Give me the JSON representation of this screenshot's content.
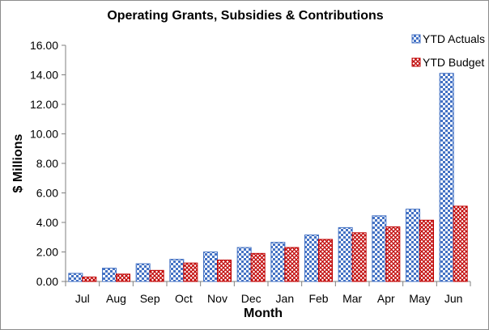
{
  "chart_data": {
    "type": "bar",
    "title": "Operating Grants, Subsidies & Contributions",
    "xlabel": "Month",
    "ylabel": "$ Millions",
    "categories": [
      "Jul",
      "Aug",
      "Sep",
      "Oct",
      "Nov",
      "Dec",
      "Jan",
      "Feb",
      "Mar",
      "Apr",
      "May",
      "Jun"
    ],
    "series": [
      {
        "name": "YTD Actuals",
        "color": "#4472c4",
        "pattern": "checker",
        "values": [
          0.55,
          0.9,
          1.2,
          1.5,
          2.0,
          2.3,
          2.65,
          3.15,
          3.65,
          4.45,
          4.9,
          14.1
        ]
      },
      {
        "name": "YTD Budget",
        "color": "#c00000",
        "pattern": "diamond-hatch",
        "values": [
          0.3,
          0.5,
          0.75,
          1.25,
          1.45,
          1.9,
          2.3,
          2.85,
          3.3,
          3.7,
          4.15,
          5.1
        ]
      }
    ],
    "ylim": [
      0,
      16
    ],
    "yticks": [
      "0.00",
      "2.00",
      "4.00",
      "6.00",
      "8.00",
      "10.00",
      "12.00",
      "14.00",
      "16.00"
    ],
    "grid": false,
    "legend": "top-right"
  }
}
